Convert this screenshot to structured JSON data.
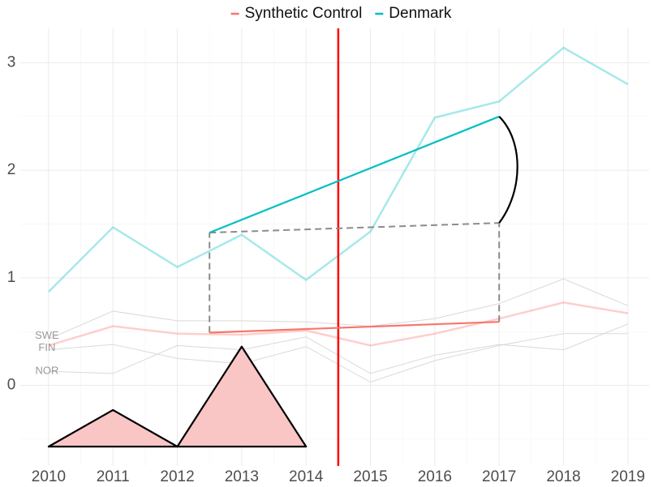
{
  "chart_data": {
    "type": "line",
    "x": [
      2010,
      2011,
      2012,
      2013,
      2014,
      2015,
      2016,
      2017,
      2018,
      2019
    ],
    "series": [
      {
        "name": "Synthetic Control",
        "color": "#F8766D",
        "values": [
          0.37,
          0.55,
          0.48,
          0.47,
          0.51,
          0.37,
          0.48,
          0.62,
          0.77,
          0.67
        ]
      },
      {
        "name": "Denmark",
        "color": "#00BFC4",
        "values": [
          0.87,
          1.47,
          1.1,
          1.4,
          0.98,
          1.43,
          2.49,
          2.64,
          3.14,
          2.8
        ]
      }
    ],
    "background_series": [
      {
        "name": "SWE",
        "color": "#d9d9d9",
        "values": [
          0.43,
          0.69,
          0.6,
          0.6,
          0.59,
          0.55,
          0.62,
          0.76,
          0.99,
          0.74
        ]
      },
      {
        "name": "FIN",
        "color": "#d9d9d9",
        "values": [
          0.33,
          0.38,
          0.25,
          0.2,
          0.36,
          0.03,
          0.23,
          0.37,
          0.48,
          0.48
        ]
      },
      {
        "name": "NOR",
        "color": "#d9d9d9",
        "values": [
          0.13,
          0.11,
          0.37,
          0.33,
          0.45,
          0.11,
          0.28,
          0.38,
          0.33,
          0.57
        ]
      }
    ],
    "treatment_line": {
      "x": 2014.5,
      "color": "#ff0000"
    },
    "trend_lines": [
      {
        "color": "#00BFC4",
        "x": [
          2012.5,
          2017
        ],
        "y": [
          1.42,
          2.5
        ]
      },
      {
        "color": "#F8766D",
        "x": [
          2012.5,
          2017
        ],
        "y": [
          0.49,
          0.59
        ]
      }
    ],
    "dashed_lines": [
      {
        "x": [
          2012.5,
          2017
        ],
        "y": [
          1.42,
          1.51
        ]
      },
      {
        "x": [
          2012.5,
          2012.5
        ],
        "y": [
          0.49,
          1.42
        ]
      },
      {
        "x": [
          2017,
          2017
        ],
        "y": [
          0.59,
          1.51
        ]
      }
    ],
    "arc": {
      "x": [
        2017,
        2017
      ],
      "y": [
        2.5,
        1.51
      ]
    },
    "triangles": [
      {
        "fill": "#f9c6c5",
        "x": [
          2010,
          2011,
          2012
        ],
        "y": [
          -0.57,
          -0.23,
          -0.57
        ]
      },
      {
        "fill": "#f9c6c5",
        "x": [
          2012,
          2013,
          2014
        ],
        "y": [
          -0.57,
          0.36,
          -0.57
        ]
      }
    ],
    "xlim": [
      2009.56,
      2019.33
    ],
    "ylim": [
      -0.75,
      3.32
    ],
    "xticks": [
      2010,
      2011,
      2012,
      2013,
      2014,
      2015,
      2016,
      2017,
      2018,
      2019
    ],
    "yticks": [
      0,
      1,
      2,
      3
    ],
    "grid": true,
    "legend": "top"
  }
}
